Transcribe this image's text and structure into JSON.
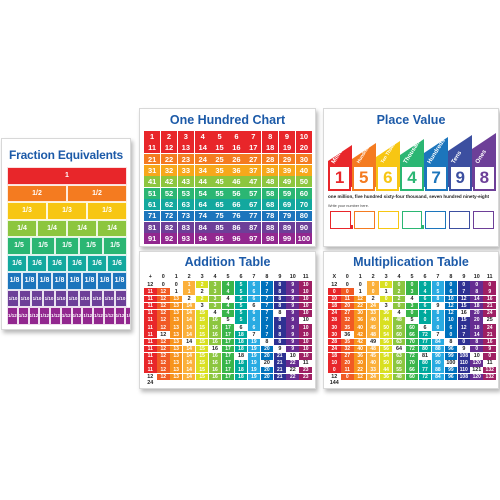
{
  "colors": {
    "title_blue": "#1c5aa8",
    "rainbow": [
      "#e8262a",
      "#f47b20",
      "#f7c613",
      "#8dc63f",
      "#13a89e",
      "#1c75bc",
      "#6d3f98",
      "#c1272d"
    ]
  },
  "fraction_chart": {
    "title": "Fraction Equivalents",
    "rows": [
      {
        "denominator": 1,
        "label": "1",
        "color": "#e8262a"
      },
      {
        "denominator": 2,
        "label": "1/2",
        "color": "#f47b20"
      },
      {
        "denominator": 3,
        "label": "1/3",
        "color": "#f7c613"
      },
      {
        "denominator": 4,
        "label": "1/4",
        "color": "#8dc63f"
      },
      {
        "denominator": 5,
        "label": "1/5",
        "color": "#2bb673"
      },
      {
        "denominator": 6,
        "label": "1/6",
        "color": "#13a89e"
      },
      {
        "denominator": 8,
        "label": "1/8",
        "color": "#1c75bc"
      },
      {
        "denominator": 10,
        "label": "1/10",
        "color": "#6d3f98"
      },
      {
        "denominator": 12,
        "label": "1/12",
        "color": "#92278f"
      }
    ]
  },
  "hundred_chart": {
    "title": "One Hundred Chart",
    "start": 1,
    "end": 100,
    "columns": 10,
    "row_colors": [
      "#e8262a",
      "#e8262a",
      "#f47b20",
      "#f7a81b",
      "#8dc63f",
      "#2bb673",
      "#13a89e",
      "#1c75bc",
      "#6d3f98",
      "#92278f"
    ]
  },
  "place_value": {
    "title": "Place Value",
    "places": [
      {
        "label": "Millions",
        "digit": "1",
        "color": "#e8262a"
      },
      {
        "label": "Hundred Thousands",
        "digit": "5",
        "color": "#f47b20"
      },
      {
        "label": "Ten Thousands",
        "digit": "6",
        "color": "#f7c613"
      },
      {
        "label": "Thousands",
        "digit": "4",
        "color": "#2bb673"
      },
      {
        "label": "Hundreds",
        "digit": "7",
        "color": "#1c75bc"
      },
      {
        "label": "Tens",
        "digit": "9",
        "color": "#3c4fa0"
      },
      {
        "label": "Ones",
        "digit": "8",
        "color": "#6d3f98"
      }
    ],
    "number_words": "one million, five hundred sixty-four thousand, seven hundred ninety-eight",
    "write_prompt": "Write your number here."
  },
  "addition_table": {
    "title": "Addition Table",
    "operator": "+",
    "headers": [
      0,
      1,
      2,
      3,
      4,
      5,
      6,
      7,
      8,
      9,
      10,
      11,
      12
    ]
  },
  "multiplication_table": {
    "title": "Multiplication Table",
    "operator": "X",
    "headers": [
      0,
      1,
      2,
      3,
      4,
      5,
      6,
      7,
      8,
      9,
      10,
      11,
      12
    ]
  }
}
